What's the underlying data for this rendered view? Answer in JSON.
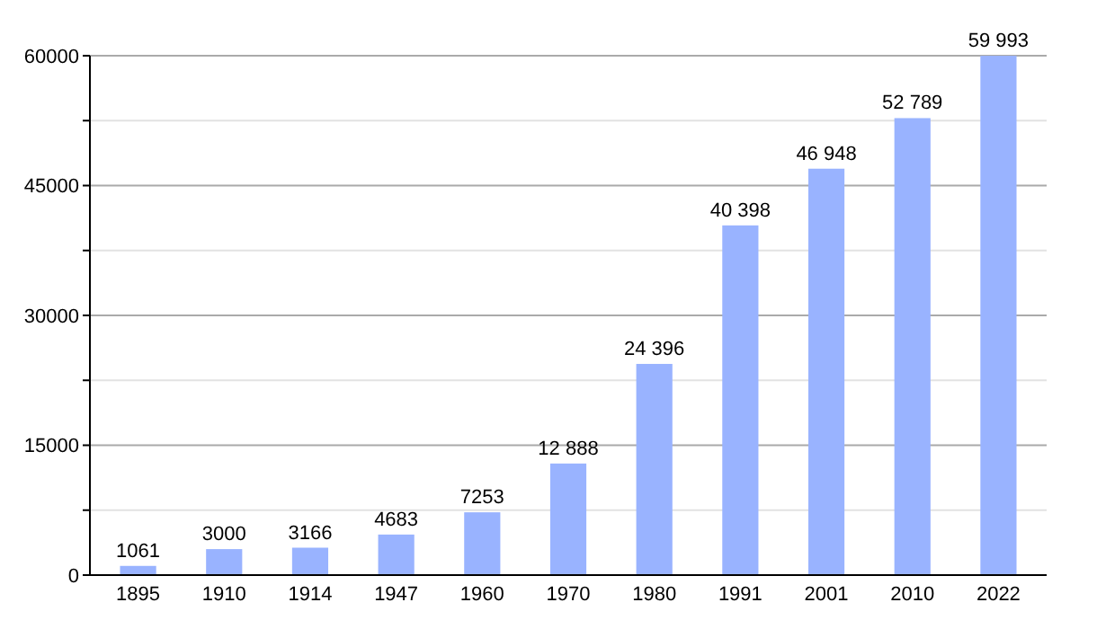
{
  "chart_data": {
    "type": "bar",
    "categories": [
      "1895",
      "1910",
      "1914",
      "1947",
      "1960",
      "1970",
      "1980",
      "1991",
      "2001",
      "2010",
      "2022"
    ],
    "values": [
      1061,
      3000,
      3166,
      4683,
      7253,
      12888,
      24396,
      40398,
      46948,
      52789,
      59993
    ],
    "value_labels": [
      "1061",
      "3000",
      "3166",
      "4683",
      "7253",
      "12 888",
      "24 396",
      "40 398",
      "46 948",
      "52 789",
      "59 993"
    ],
    "color": "#99b3ff",
    "ylim": [
      0,
      60000
    ],
    "yticks": [
      0,
      {
        "value": 7500,
        "label": null
      },
      15000,
      {
        "value": 22500,
        "label": null
      },
      30000,
      {
        "value": 37500,
        "label": null
      },
      45000,
      {
        "value": 52500,
        "label": null
      },
      60000
    ],
    "grid": "y"
  }
}
